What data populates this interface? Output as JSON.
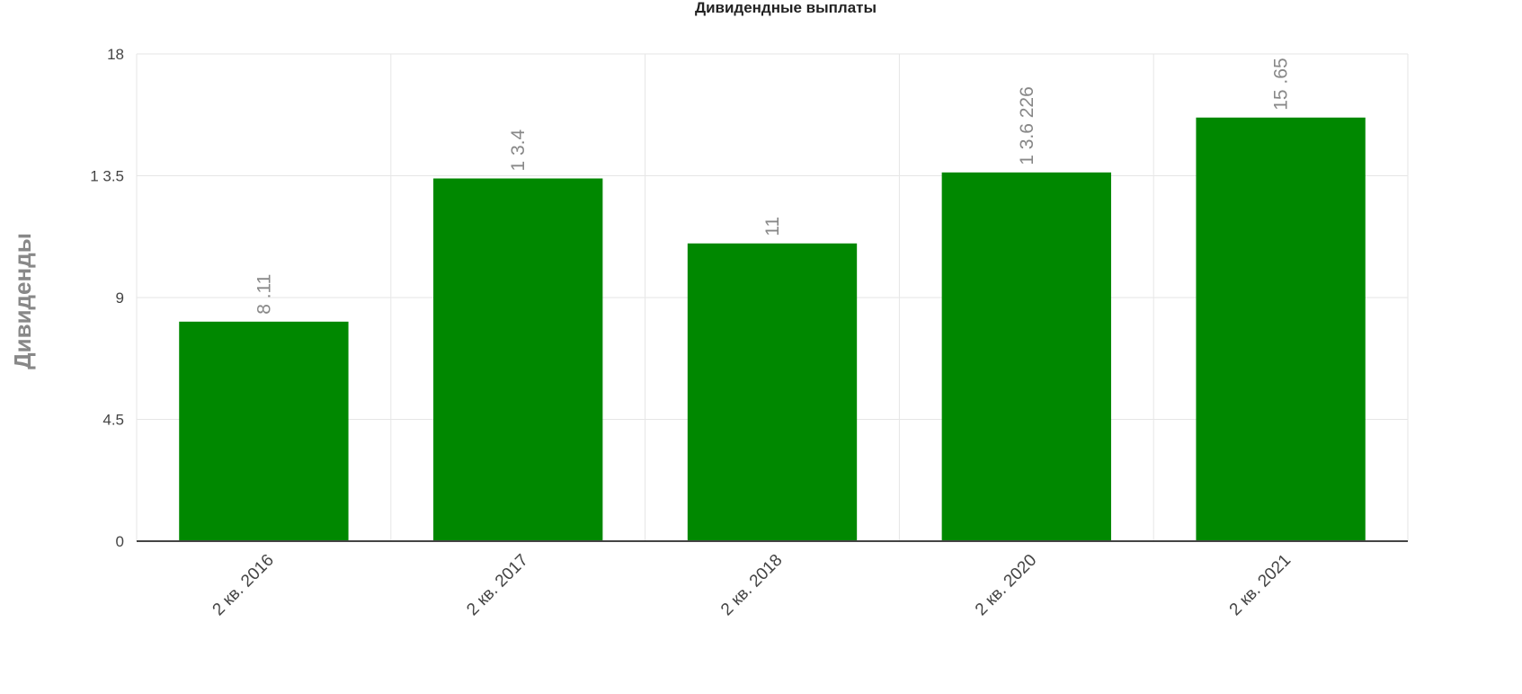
{
  "chart_data": {
    "type": "bar",
    "title": "Дивидендные выплаты",
    "y_axis_label": "Дивиденды",
    "categories": [
      "2 кв. 2016",
      "2 кв. 2017",
      "2 кв. 2018",
      "2 кв. 2020",
      "2 кв. 2021"
    ],
    "values": [
      8.11,
      13.4,
      11,
      13.6226,
      15.65
    ],
    "value_labels": [
      "8 .11",
      "1 3.4",
      "11",
      "1 3.6 226",
      "15 .65"
    ],
    "color": "#008800",
    "ylim": [
      0,
      18
    ],
    "yticks": [
      0,
      4.5,
      9,
      {
        "value": 13.5,
        "label": "1 3.5"
      },
      18
    ],
    "grid": true
  }
}
